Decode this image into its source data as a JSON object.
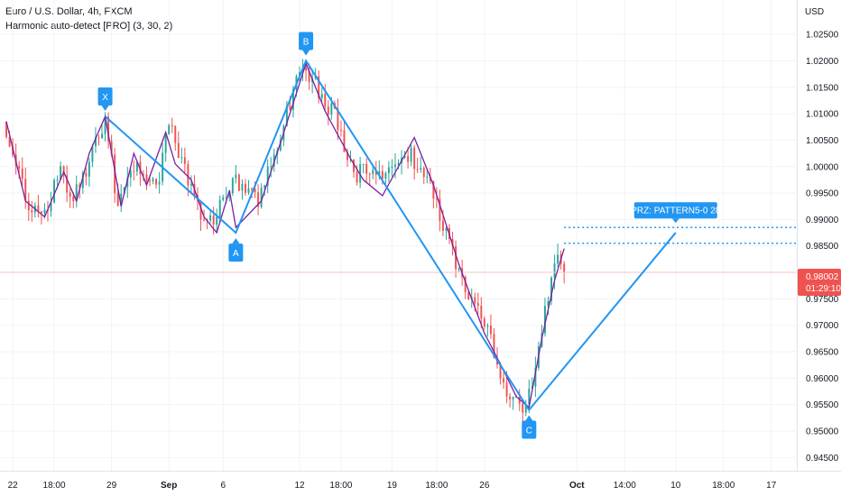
{
  "header": {
    "symbol_title": "Euro / U.S. Dollar, 4h, FXCM",
    "indicator_title": "Harmonic auto-detect [PRO] (3, 30, 2)"
  },
  "price_axis": {
    "currency": "USD",
    "last_price": "0.98002",
    "countdown": "01:29:10"
  },
  "prz_label": "PRZ: PATTERN5-0 28",
  "colors": {
    "up": "#26a69a",
    "down": "#ef5350",
    "pattern_blue": "#2196f3",
    "zigzag_purple": "#7b1fa2",
    "price_line": "#f7c6c6"
  },
  "chart_data": {
    "type": "candlestick",
    "title": "Euro / U.S. Dollar, 4h, FXCM",
    "ylabel": "USD",
    "ylim": [
      0.9425,
      1.0315
    ],
    "grid": true,
    "xlim": [
      -2,
      248
    ],
    "x_ticks": [
      {
        "label": "22",
        "x": 2
      },
      {
        "label": "18:00",
        "x": 15
      },
      {
        "label": "29",
        "x": 33
      },
      {
        "label": "Sep",
        "x": 51
      },
      {
        "label": "6",
        "x": 68
      },
      {
        "label": "12",
        "x": 92
      },
      {
        "label": "18:00",
        "x": 105
      },
      {
        "label": "19",
        "x": 121
      },
      {
        "label": "18:00",
        "x": 135
      },
      {
        "label": "26",
        "x": 150
      },
      {
        "label": "Oct",
        "x": 179
      },
      {
        "label": "14:00",
        "x": 194
      },
      {
        "label": "10",
        "x": 210
      },
      {
        "label": "18:00",
        "x": 225
      },
      {
        "label": "17",
        "x": 240
      }
    ],
    "y_ticks": [
      1.025,
      1.02,
      1.015,
      1.01,
      1.005,
      1.0,
      0.995,
      0.99,
      0.985,
      0.98,
      0.975,
      0.97,
      0.965,
      0.96,
      0.955,
      0.95,
      0.945
    ],
    "y_tick_labels": [
      "1.02500",
      "1.02000",
      "1.01500",
      "1.01000",
      "1.00500",
      "1.00000",
      "0.99500",
      "0.99000",
      "0.98500",
      "0.98000",
      "0.97500",
      "0.97000",
      "0.96500",
      "0.96000",
      "0.95500",
      "0.95000",
      "0.94500"
    ],
    "last_price": 0.98002,
    "path_anchors": [
      [
        0,
        1.0085
      ],
      [
        8,
        0.9925
      ],
      [
        12,
        0.9905
      ],
      [
        18,
        0.999
      ],
      [
        22,
        0.9935
      ],
      [
        32,
        1.009
      ],
      [
        36,
        0.9925
      ],
      [
        42,
        1.0005
      ],
      [
        48,
        0.9955
      ],
      [
        52,
        1.008
      ],
      [
        62,
        0.9905
      ],
      [
        66,
        0.9895
      ],
      [
        72,
        0.9975
      ],
      [
        80,
        0.9935
      ],
      [
        84,
        1.001
      ],
      [
        94,
        1.0195
      ],
      [
        104,
        1.0095
      ],
      [
        110,
        0.9985
      ],
      [
        120,
        0.9995
      ],
      [
        128,
        1.002
      ],
      [
        134,
        0.9965
      ],
      [
        142,
        0.9815
      ],
      [
        152,
        0.9685
      ],
      [
        158,
        0.9575
      ],
      [
        164,
        0.9535
      ],
      [
        168,
        0.9665
      ],
      [
        174,
        0.9835
      ],
      [
        175,
        0.9815
      ]
    ],
    "harmonic_pattern": [
      {
        "label": "X",
        "x": 31,
        "y": 1.0095
      },
      {
        "label": "A",
        "x": 72,
        "y": 0.9875
      },
      {
        "label": "B",
        "x": 94,
        "y": 1.02
      },
      {
        "label": "C",
        "x": 164,
        "y": 0.954
      }
    ],
    "projection_end": {
      "x": 210,
      "y": 0.9875
    },
    "prz_levels": [
      0.9885,
      0.9855
    ],
    "prz_range_x": [
      175,
      248
    ],
    "zigzag": [
      [
        0,
        1.0085
      ],
      [
        6,
        0.9935
      ],
      [
        12,
        0.9905
      ],
      [
        18,
        0.999
      ],
      [
        22,
        0.9935
      ],
      [
        26,
        1.0025
      ],
      [
        31,
        1.0095
      ],
      [
        36,
        0.9925
      ],
      [
        40,
        1.0025
      ],
      [
        44,
        0.9965
      ],
      [
        50,
        1.0065
      ],
      [
        53,
        1.0005
      ],
      [
        58,
        0.9975
      ],
      [
        62,
        0.9905
      ],
      [
        66,
        0.9875
      ],
      [
        70,
        0.9955
      ],
      [
        72,
        0.9885
      ],
      [
        80,
        0.9935
      ],
      [
        86,
        1.0045
      ],
      [
        94,
        1.0195
      ],
      [
        100,
        1.0105
      ],
      [
        108,
        1.0015
      ],
      [
        112,
        0.9975
      ],
      [
        118,
        0.9945
      ],
      [
        128,
        1.0055
      ],
      [
        134,
        0.9965
      ],
      [
        142,
        0.9815
      ],
      [
        150,
        0.9685
      ],
      [
        156,
        0.9615
      ],
      [
        160,
        0.9565
      ],
      [
        164,
        0.9545
      ],
      [
        168,
        0.9675
      ],
      [
        172,
        0.9785
      ],
      [
        175,
        0.9845
      ]
    ]
  }
}
